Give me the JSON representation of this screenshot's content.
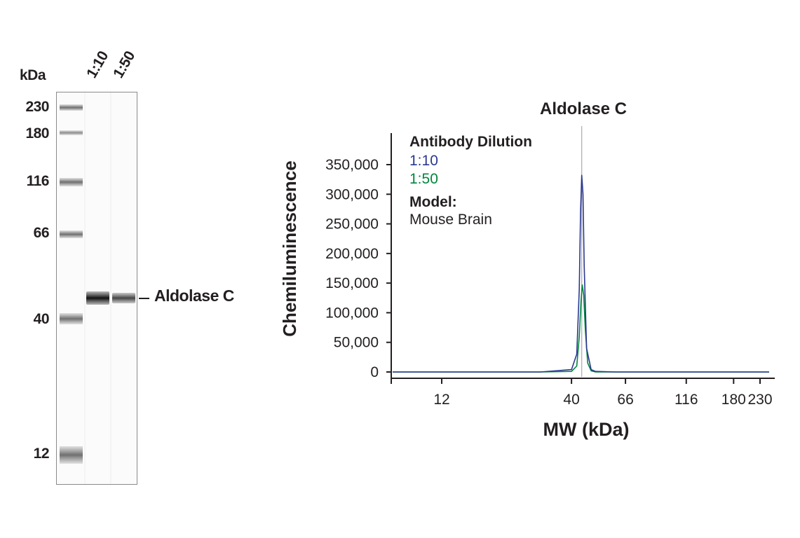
{
  "blot": {
    "unit_label": "kDa",
    "lanes": [
      "1:10",
      "1:50"
    ],
    "ladder": [
      "230",
      "180",
      "116",
      "66",
      "40",
      "12"
    ],
    "band_label": "Aldolase C"
  },
  "colors": {
    "series_1_10": "#2b3990",
    "series_1_50": "#00873e",
    "text": "#231f20"
  },
  "chart_data": {
    "type": "line",
    "title": "Aldolase C",
    "xlabel": "MW (kDa)",
    "ylabel": "Chemiluminescence",
    "x_scale": "log",
    "x_ticks": [
      "12",
      "40",
      "66",
      "116",
      "180",
      "230"
    ],
    "x_tick_values": [
      12,
      40,
      66,
      116,
      180,
      230
    ],
    "y_ticks": [
      "0",
      "50,000",
      "100,000",
      "150,000",
      "200,000",
      "250,000",
      "300,000",
      "350,000"
    ],
    "y_tick_values": [
      0,
      50000,
      100000,
      150000,
      200000,
      250000,
      300000,
      350000
    ],
    "ylim": [
      0,
      370000
    ],
    "reference_line_x": 44,
    "legend": {
      "title": "Antibody Dilution",
      "model_label": "Model:",
      "model_value": "Mouse Brain"
    },
    "series": [
      {
        "name": "1:10",
        "color": "#2b3990",
        "x": [
          6,
          30,
          40,
          42,
          43,
          43.5,
          44,
          44.5,
          45,
          46,
          48,
          50,
          60,
          116,
          300
        ],
        "y": [
          0,
          0,
          4000,
          30000,
          140000,
          270000,
          332000,
          300000,
          180000,
          40000,
          4000,
          1000,
          0,
          0,
          0
        ]
      },
      {
        "name": "1:50",
        "color": "#00873e",
        "x": [
          6,
          30,
          40,
          42,
          43,
          43.7,
          44.2,
          44.8,
          45.5,
          46.5,
          48,
          50,
          60,
          116,
          300
        ],
        "y": [
          0,
          0,
          1000,
          10000,
          60000,
          120000,
          147000,
          130000,
          70000,
          15000,
          2000,
          0,
          0,
          0,
          0
        ]
      }
    ]
  }
}
